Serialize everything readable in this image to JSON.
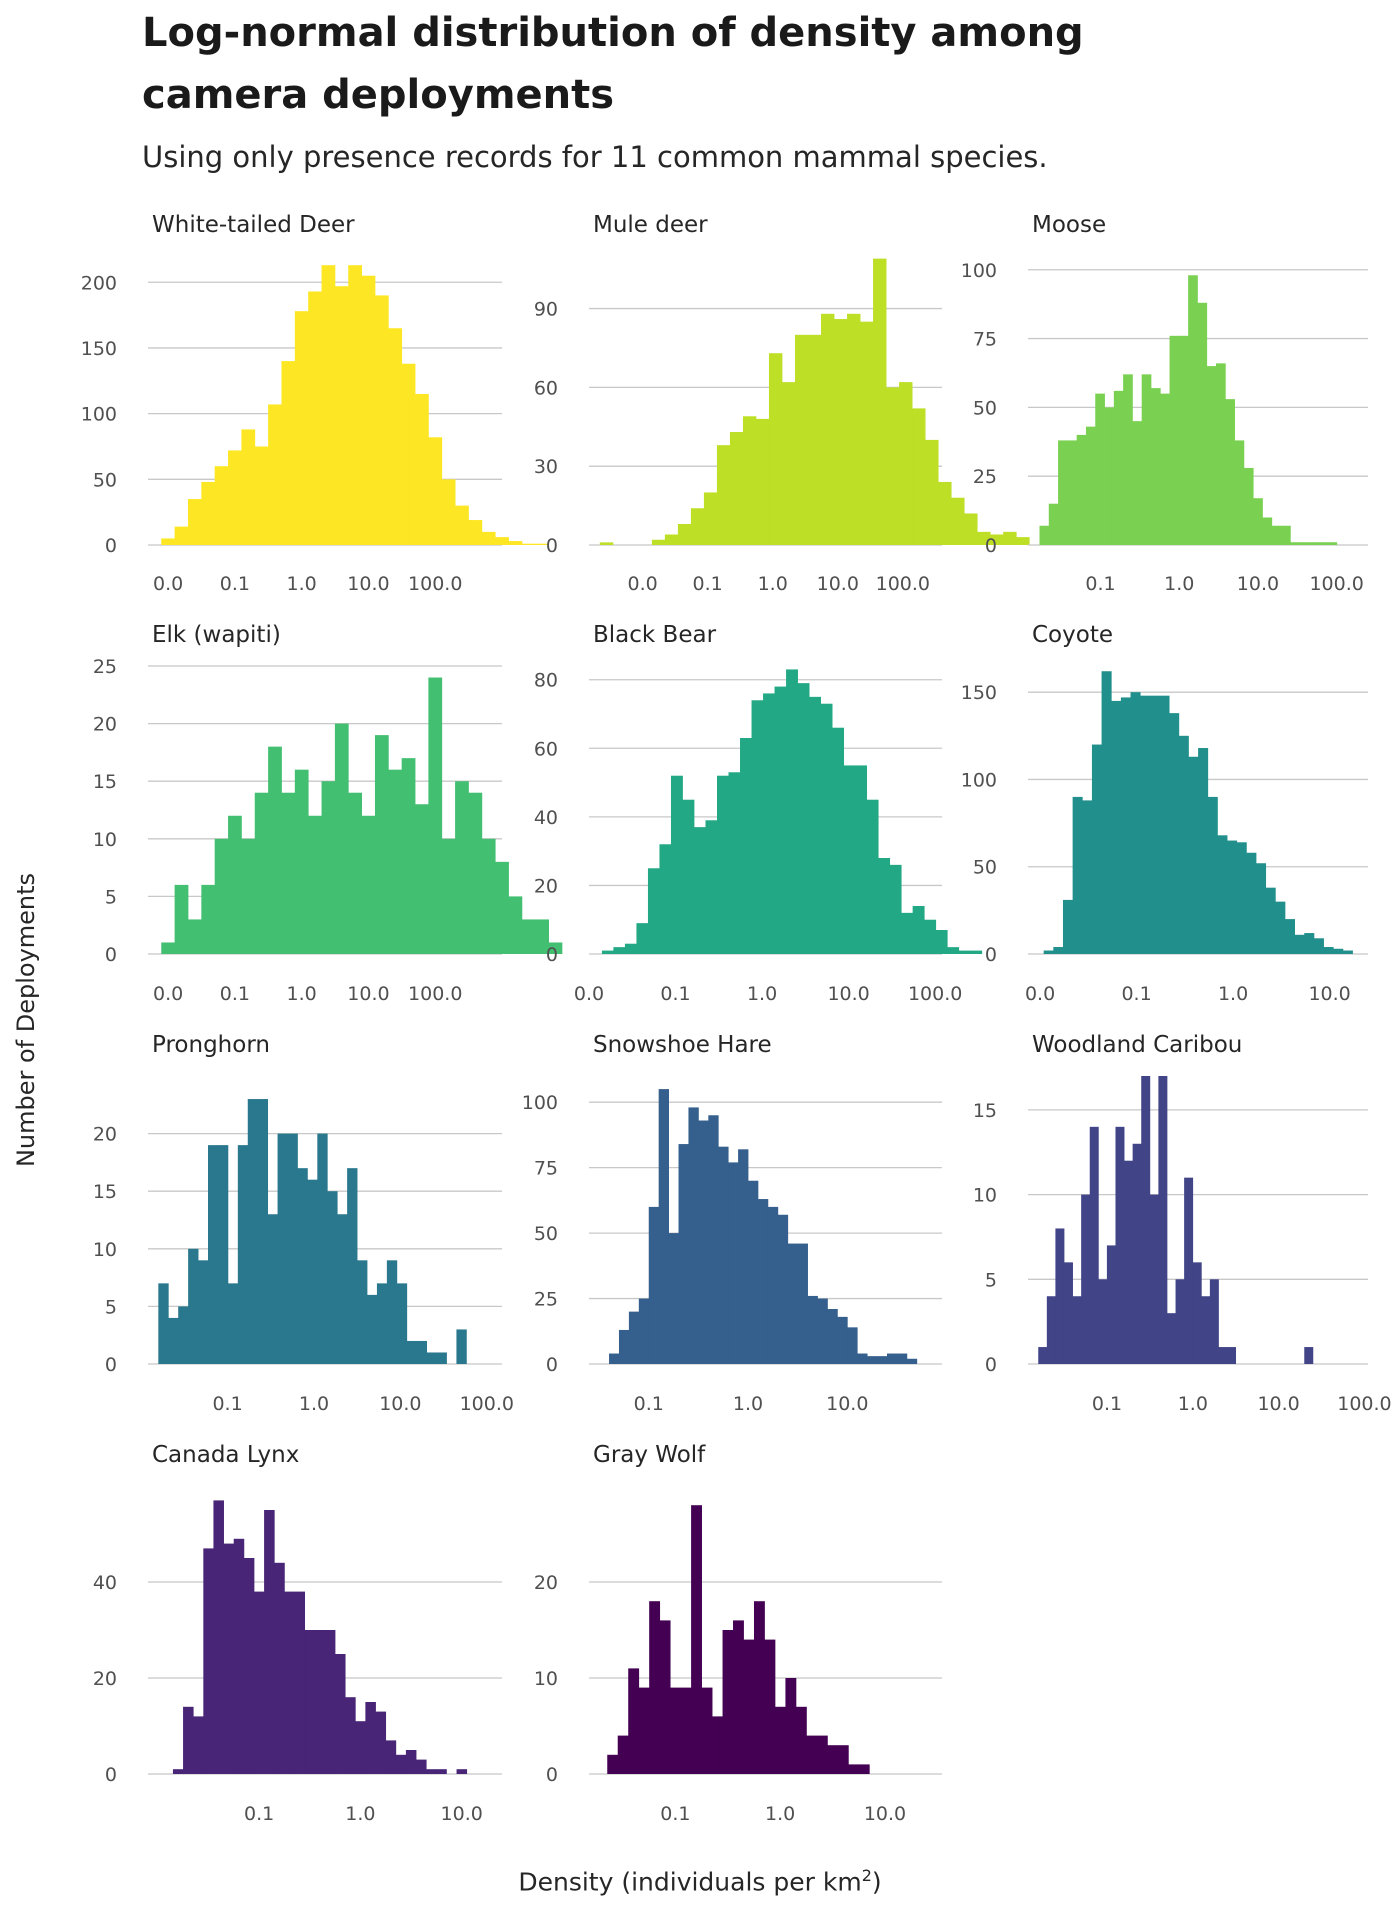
{
  "title": "Log-normal distribution of density among camera deployments",
  "subtitle": "Using only presence records for 11 common mammal species.",
  "ylabel": "Number of Deployments",
  "xlabel_main": "Density (individuals per km",
  "xlabel_sup": "2",
  "xlabel_end": ")",
  "chart_data": {
    "type": "bar",
    "x_scale": "log10",
    "grid": "horizontal",
    "panels": [
      {
        "name": "White-tailed Deer",
        "color": "#FDE725",
        "ylim": [
          0,
          220
        ],
        "yticks": [
          0,
          50,
          100,
          150,
          200
        ],
        "xlim": [
          0.005,
          1000
        ],
        "xticks": [
          0.01,
          0.1,
          1,
          10,
          100
        ],
        "xtick_labels": [
          "0.0",
          "0.1",
          "1.0",
          "10.0",
          "100.0"
        ],
        "bin_edges_start": 0.0079,
        "bin_width_log10": 0.2,
        "counts": [
          5,
          14,
          35,
          48,
          60,
          72,
          88,
          75,
          107,
          140,
          178,
          193,
          213,
          197,
          213,
          205,
          190,
          165,
          138,
          115,
          82,
          50,
          30,
          19,
          10,
          6,
          3,
          1,
          1
        ]
      },
      {
        "name": "Mule deer",
        "color": "#BDDF26",
        "ylim": [
          0,
          110
        ],
        "yticks": [
          0,
          30,
          60,
          90
        ],
        "xlim": [
          0.0015,
          400
        ],
        "xticks": [
          0.01,
          0.1,
          1,
          10,
          100
        ],
        "xtick_labels": [
          "0.0",
          "0.1",
          "1.0",
          "10.0",
          "100.0"
        ],
        "bin_edges_start": 0.0022,
        "bin_width_log10": 0.2,
        "counts": [
          1,
          0,
          0,
          0,
          2,
          4,
          8,
          14,
          20,
          38,
          43,
          49,
          48,
          73,
          62,
          80,
          80,
          88,
          86,
          88,
          85,
          109,
          60,
          62,
          52,
          40,
          24,
          18,
          12,
          5,
          4,
          5,
          3
        ]
      },
      {
        "name": "Moose",
        "color": "#7AD151",
        "ylim": [
          0,
          105
        ],
        "yticks": [
          0,
          25,
          50,
          75,
          100
        ],
        "xlim": [
          0.012,
          250
        ],
        "xticks": [
          0.1,
          1,
          10,
          100
        ],
        "xtick_labels": [
          "0.1",
          "1.0",
          "10.0",
          "100.0"
        ],
        "bin_edges_start": 0.0168,
        "bin_width_log10": 0.118,
        "counts": [
          7,
          15,
          38,
          38,
          40,
          43,
          55,
          50,
          56,
          62,
          45,
          62,
          57,
          55,
          76,
          76,
          98,
          88,
          65,
          66,
          53,
          38,
          28,
          17,
          10,
          7,
          7,
          1,
          1,
          1,
          1,
          1
        ]
      },
      {
        "name": "Elk (wapiti)",
        "color": "#43BF71",
        "ylim": [
          0,
          25
        ],
        "yticks": [
          0,
          5,
          10,
          15,
          20,
          25
        ],
        "xlim": [
          0.005,
          1000
        ],
        "xticks": [
          0.01,
          0.1,
          1,
          10,
          100
        ],
        "xtick_labels": [
          "0.0",
          "0.1",
          "1.0",
          "10.0",
          "100.0"
        ],
        "bin_edges_start": 0.0079,
        "bin_width_log10": 0.2,
        "counts": [
          1,
          6,
          3,
          6,
          10,
          12,
          10,
          14,
          18,
          14,
          16,
          12,
          15,
          20,
          14,
          12,
          19,
          16,
          17,
          13,
          24,
          10,
          15,
          14,
          10,
          8,
          5,
          3,
          3,
          1
        ]
      },
      {
        "name": "Black Bear",
        "color": "#22A884",
        "ylim": [
          0,
          84
        ],
        "yticks": [
          0,
          20,
          40,
          60,
          80
        ],
        "xlim": [
          0.01,
          120
        ],
        "xticks": [
          0.01,
          0.1,
          1,
          10,
          100
        ],
        "xtick_labels": [
          "0.0",
          "0.1",
          "1.0",
          "10.0",
          "100.0"
        ],
        "bin_edges_start": 0.0141,
        "bin_width_log10": 0.133,
        "counts": [
          1,
          2,
          3,
          9,
          25,
          32,
          52,
          45,
          37,
          39,
          52,
          53,
          63,
          74,
          76,
          78,
          83,
          79,
          75,
          73,
          66,
          55,
          55,
          45,
          28,
          26,
          12,
          14,
          10,
          7,
          2,
          1,
          1
        ]
      },
      {
        "name": "Coyote",
        "color": "#21908C",
        "ylim": [
          0,
          165
        ],
        "yticks": [
          0,
          50,
          100,
          150
        ],
        "xlim": [
          0.0075,
          25
        ],
        "xticks": [
          0.01,
          0.1,
          1,
          10
        ],
        "xtick_labels": [
          "0.0",
          "0.1",
          "1.0",
          "10.0"
        ],
        "bin_edges_start": 0.0109,
        "bin_width_log10": 0.1,
        "counts": [
          2,
          4,
          31,
          90,
          88,
          120,
          162,
          145,
          147,
          150,
          148,
          148,
          148,
          138,
          125,
          113,
          118,
          90,
          68,
          65,
          64,
          58,
          52,
          38,
          30,
          20,
          11,
          12,
          9,
          4,
          3,
          2
        ]
      },
      {
        "name": "Pronghorn",
        "color": "#2A788E",
        "ylim": [
          0,
          25
        ],
        "yticks": [
          0,
          5,
          10,
          15,
          20
        ],
        "xlim": [
          0.012,
          150
        ],
        "xticks": [
          0.1,
          1,
          10,
          100
        ],
        "xtick_labels": [
          "0.1",
          "1.0",
          "10.0",
          "100.0"
        ],
        "bin_edges_start": 0.0158,
        "bin_width_log10": 0.115,
        "counts": [
          7,
          4,
          5,
          10,
          9,
          19,
          19,
          7,
          19,
          23,
          23,
          13,
          20,
          20,
          17,
          16,
          20,
          15,
          13,
          17,
          9,
          6,
          7,
          9,
          7,
          2,
          2,
          1,
          1,
          0,
          3
        ]
      },
      {
        "name": "Snowshoe Hare",
        "color": "#355F8D",
        "ylim": [
          0,
          110
        ],
        "yticks": [
          0,
          25,
          50,
          75,
          100
        ],
        "xlim": [
          0.025,
          90
        ],
        "xticks": [
          0.1,
          1,
          10
        ],
        "xtick_labels": [
          "0.1",
          "1.0",
          "10.0"
        ],
        "bin_edges_start": 0.0398,
        "bin_width_log10": 0.1,
        "counts": [
          4,
          13,
          20,
          25,
          60,
          105,
          50,
          84,
          98,
          93,
          95,
          83,
          77,
          82,
          70,
          63,
          60,
          57,
          46,
          46,
          26,
          25,
          21,
          18,
          14,
          4,
          3,
          3,
          4,
          4,
          2
        ]
      },
      {
        "name": "Woodland Caribou",
        "color": "#414487",
        "ylim": [
          0,
          17
        ],
        "yticks": [
          0,
          5,
          10,
          15
        ],
        "xlim": [
          0.012,
          110
        ],
        "xticks": [
          0.1,
          1,
          10,
          100
        ],
        "xtick_labels": [
          "0.1",
          "1.0",
          "10.0",
          "100.0"
        ],
        "bin_edges_start": 0.0158,
        "bin_width_log10": 0.1,
        "counts": [
          1,
          4,
          8,
          6,
          4,
          10,
          14,
          5,
          7,
          14,
          12,
          13,
          17,
          10,
          17,
          3,
          5,
          11,
          6,
          4,
          5,
          1,
          1,
          0,
          0,
          0,
          0,
          0,
          0,
          0,
          0,
          1
        ]
      },
      {
        "name": "Canada Lynx",
        "color": "#482576",
        "ylim": [
          0,
          60
        ],
        "yticks": [
          0,
          20,
          40
        ],
        "xlim": [
          0.008,
          25
        ],
        "xticks": [
          0.1,
          1,
          10
        ],
        "xtick_labels": [
          "0.1",
          "1.0",
          "10.0"
        ],
        "bin_edges_start": 0.0141,
        "bin_width_log10": 0.1,
        "counts": [
          1,
          14,
          12,
          47,
          57,
          48,
          49,
          45,
          38,
          55,
          44,
          38,
          38,
          30,
          30,
          30,
          25,
          16,
          11,
          15,
          13,
          7,
          4,
          5,
          3,
          1,
          1,
          0,
          1
        ]
      },
      {
        "name": "Gray Wolf",
        "color": "#440154",
        "ylim": [
          0,
          30
        ],
        "yticks": [
          0,
          10,
          20
        ],
        "xlim": [
          0.015,
          35
        ],
        "xticks": [
          0.1,
          1,
          10
        ],
        "xtick_labels": [
          "0.1",
          "1.0",
          "10.0"
        ],
        "bin_edges_start": 0.0224,
        "bin_width_log10": 0.1,
        "counts": [
          2,
          4,
          11,
          9,
          18,
          16,
          9,
          9,
          28,
          9,
          6,
          15,
          16,
          14,
          18,
          14,
          7,
          10,
          7,
          4,
          4,
          3,
          3,
          1,
          1
        ]
      }
    ]
  }
}
